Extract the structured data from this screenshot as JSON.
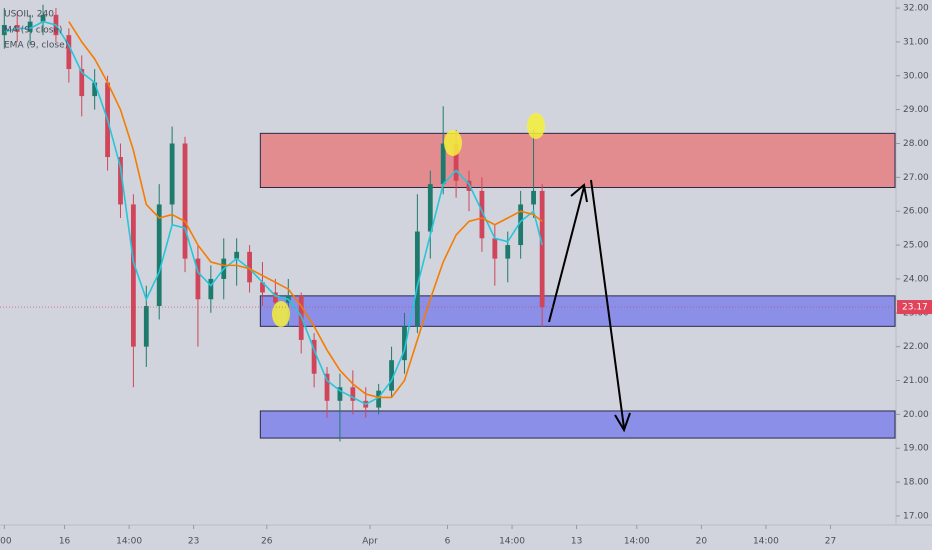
{
  "chart_data": {
    "type": "candlestick",
    "title": "USOIL, 240",
    "indicators": [
      {
        "name": "MA (9, close)",
        "color": "#26c6da"
      },
      {
        "name": "EMA (9, close)",
        "color": "#f57c00"
      }
    ],
    "x": [
      1,
      4,
      7,
      10,
      13,
      16,
      19,
      22,
      25,
      28,
      31,
      34,
      37,
      40,
      43,
      46,
      49,
      52,
      55,
      58,
      61,
      64,
      67,
      70,
      73,
      76,
      79,
      82,
      85,
      88,
      91,
      94,
      97,
      100,
      103,
      106,
      109,
      112,
      115,
      118,
      121,
      124,
      126
    ],
    "open": [
      31.2,
      31.5,
      31.3,
      31.6,
      31.8,
      31.2,
      30.2,
      29.4,
      29.8,
      27.6,
      26.2,
      22.0,
      23.2,
      26.2,
      28.0,
      24.6,
      23.4,
      24.0,
      24.6,
      24.8,
      23.9,
      23.6,
      23.3,
      23.5,
      22.2,
      21.2,
      20.4,
      20.8,
      20.4,
      20.2,
      20.7,
      21.6,
      22.6,
      25.4,
      26.8,
      28.0,
      26.9,
      26.6,
      25.2,
      24.6,
      25.0,
      26.2,
      26.6
    ],
    "high": [
      32.0,
      31.9,
      31.8,
      32.1,
      32.0,
      31.4,
      30.6,
      30.2,
      30.0,
      28.0,
      26.5,
      23.8,
      26.8,
      28.5,
      28.2,
      25.0,
      24.4,
      25.2,
      25.2,
      25.0,
      24.5,
      24.0,
      24.0,
      23.6,
      22.4,
      21.4,
      21.2,
      21.3,
      20.8,
      20.9,
      22.0,
      23.0,
      26.5,
      27.2,
      29.1,
      28.4,
      27.2,
      27.0,
      25.6,
      25.4,
      26.6,
      28.4,
      26.8
    ],
    "low": [
      30.8,
      31.0,
      30.9,
      31.2,
      31.0,
      29.8,
      28.8,
      29.0,
      27.2,
      25.8,
      20.8,
      21.4,
      22.8,
      25.6,
      24.2,
      22.0,
      23.0,
      23.4,
      23.8,
      23.6,
      23.2,
      22.8,
      22.6,
      21.8,
      20.8,
      19.9,
      19.2,
      20.0,
      19.9,
      20.0,
      20.5,
      21.2,
      22.4,
      24.6,
      26.5,
      26.4,
      26.0,
      24.8,
      23.8,
      23.9,
      24.6,
      25.8,
      22.6
    ],
    "close": [
      31.5,
      31.3,
      31.6,
      31.8,
      31.2,
      30.2,
      29.4,
      29.8,
      27.6,
      26.2,
      22.0,
      23.2,
      26.2,
      28.0,
      24.6,
      23.4,
      24.0,
      24.6,
      24.8,
      23.9,
      23.6,
      23.3,
      23.5,
      22.2,
      21.2,
      20.4,
      20.8,
      20.4,
      20.2,
      20.7,
      21.6,
      22.6,
      25.4,
      26.8,
      28.0,
      26.9,
      26.6,
      25.2,
      24.6,
      25.0,
      26.2,
      26.6,
      23.17
    ],
    "ma": [
      31.3,
      31.4,
      31.4,
      31.6,
      31.5,
      30.9,
      30.1,
      29.8,
      28.7,
      27.3,
      24.5,
      23.4,
      24.2,
      25.6,
      25.5,
      24.2,
      23.8,
      24.3,
      24.6,
      24.3,
      23.9,
      23.5,
      23.4,
      22.9,
      21.9,
      21.0,
      20.7,
      20.5,
      20.3,
      20.5,
      21.0,
      21.9,
      23.8,
      25.3,
      26.8,
      27.2,
      26.8,
      26.0,
      25.2,
      25.1,
      25.7,
      26.0,
      25.0
    ],
    "ema": [
      null,
      null,
      null,
      null,
      null,
      31.6,
      31.0,
      30.5,
      29.8,
      29.0,
      27.8,
      26.2,
      25.8,
      25.9,
      25.7,
      25.0,
      24.5,
      24.4,
      24.4,
      24.3,
      24.1,
      23.9,
      23.7,
      23.2,
      22.6,
      21.9,
      21.3,
      20.9,
      20.6,
      20.5,
      20.5,
      21.0,
      22.2,
      23.4,
      24.5,
      25.3,
      25.7,
      25.8,
      25.6,
      25.8,
      26.0,
      25.9,
      25.7
    ],
    "up_color": "#1f7a6e",
    "down_color": "#d0455a",
    "zones": [
      {
        "x_start": 60.5,
        "low": 26.7,
        "high": 28.3,
        "color": "#e38c90"
      },
      {
        "x_start": 60.5,
        "low": 22.6,
        "high": 23.5,
        "color": "#8c8fe8"
      },
      {
        "x_start": 60.5,
        "low": 19.3,
        "high": 20.1,
        "color": "#8c8fe8"
      }
    ],
    "last_price": 23.17,
    "xlim": [
      0,
      208
    ],
    "xticks": [
      {
        "value": 1,
        "label": ":00"
      },
      {
        "value": 15,
        "label": "16"
      },
      {
        "value": 30,
        "label": "14:00"
      },
      {
        "value": 45,
        "label": "23"
      },
      {
        "value": 62,
        "label": "26"
      },
      {
        "value": 86,
        "label": "Apr"
      },
      {
        "value": 104,
        "label": "6"
      },
      {
        "value": 119,
        "label": "14:00"
      },
      {
        "value": 134,
        "label": "13"
      },
      {
        "value": 148,
        "label": "14:00"
      },
      {
        "value": 163,
        "label": "20"
      },
      {
        "value": 178,
        "label": "14:00"
      },
      {
        "value": 193,
        "label": "27"
      }
    ],
    "ylim": [
      16.88,
      32.12
    ],
    "yticks": [
      {
        "value": 17,
        "label": "17.00"
      },
      {
        "value": 18,
        "label": "18.00"
      },
      {
        "value": 19,
        "label": "19.00"
      },
      {
        "value": 20,
        "label": "20.00"
      },
      {
        "value": 21,
        "label": "21.00"
      },
      {
        "value": 22,
        "label": "22.00"
      },
      {
        "value": 23,
        "label": "23.00"
      },
      {
        "value": 24,
        "label": "24.00"
      },
      {
        "value": 25,
        "label": "25.00"
      },
      {
        "value": 26,
        "label": "26.00"
      },
      {
        "value": 27,
        "label": "27.00"
      },
      {
        "value": 28,
        "label": "28.00"
      },
      {
        "value": 29,
        "label": "29.00"
      },
      {
        "value": 30,
        "label": "30.00"
      },
      {
        "value": 31,
        "label": "31.00"
      },
      {
        "value": 32,
        "label": "32.00"
      }
    ]
  }
}
